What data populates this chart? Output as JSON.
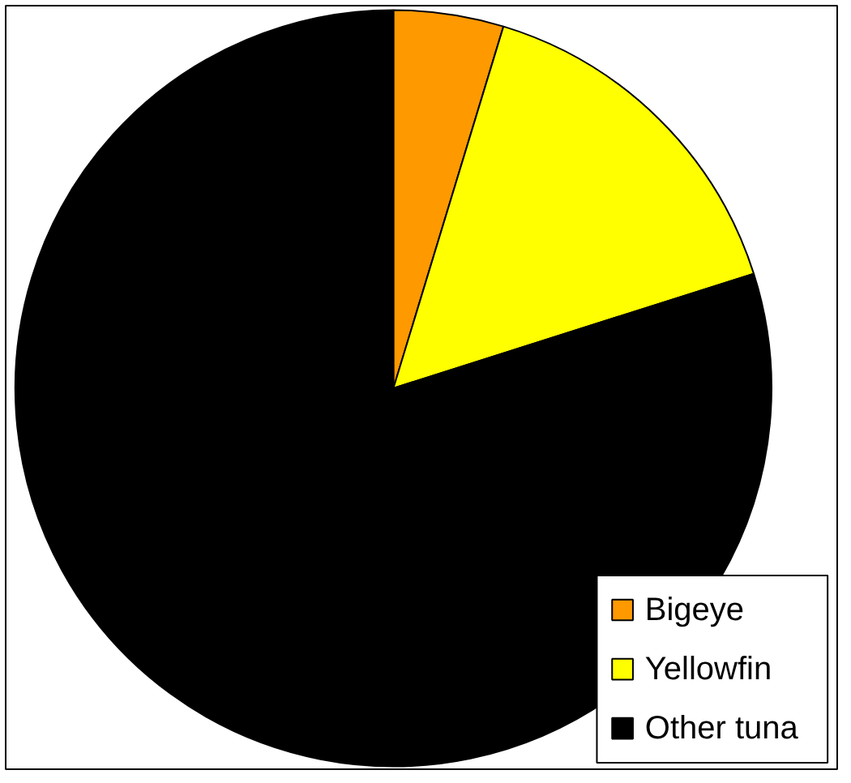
{
  "chart_data": {
    "type": "pie",
    "categories": [
      "Bigeye",
      "Yellowfin",
      "Other tuna"
    ],
    "values": [
      4.7,
      15.4,
      79.9
    ],
    "colors": [
      "#ff9900",
      "#ffff00",
      "#000000"
    ],
    "legend": "bottom right"
  }
}
